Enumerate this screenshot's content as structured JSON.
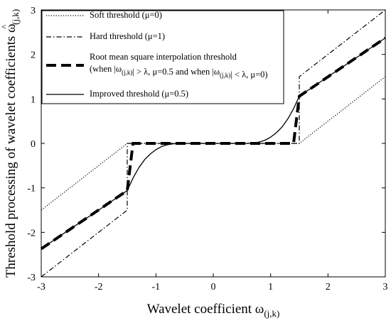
{
  "chart_data": {
    "type": "line",
    "xlabel": "Wavelet coefficient ω",
    "xlabel_sub": "(j,k)",
    "ylabel": "Threshold processing of wavelet coefficients ω",
    "ylabel_sub": "(j,k)",
    "ylabel_mark": "^",
    "xlim": [
      -3,
      3
    ],
    "ylim": [
      -3,
      3
    ],
    "x_ticks": [
      -3,
      -2,
      -1,
      0,
      1,
      2,
      3
    ],
    "y_ticks": [
      -3,
      -2,
      -1,
      0,
      1,
      2,
      3
    ],
    "x_tick_labels": [
      "-3",
      "-2",
      "-1",
      "0",
      "1",
      "2",
      "3"
    ],
    "y_tick_labels": [
      "-3",
      "-2",
      "-1",
      "0",
      "1",
      "2",
      "3"
    ],
    "grid": false,
    "legend_position": "top-left",
    "threshold": 1.5,
    "series": [
      {
        "id": "soft",
        "style": "dotted",
        "legend_lines": [
          "Soft threshold (μ=0)"
        ],
        "points": [
          [
            -3,
            -1.5
          ],
          [
            -1.5,
            0
          ],
          [
            1.5,
            0
          ],
          [
            3,
            1.5
          ]
        ]
      },
      {
        "id": "hard",
        "style": "dashdot",
        "legend_lines": [
          "Hard threshold (μ=1)"
        ],
        "points": [
          [
            -3,
            -3
          ],
          [
            -1.5,
            -1.5
          ],
          [
            -1.5,
            0
          ],
          [
            1.5,
            0
          ],
          [
            1.5,
            1.5
          ],
          [
            3,
            3
          ]
        ]
      },
      {
        "id": "rms",
        "style": "thick-dashed",
        "legend_lines": [
          "Root mean square interpolation threshold",
          "(when |ω(j,k)| > λ, μ=0.5 and when |ω(j,k)| < λ, μ=0)"
        ],
        "points": [
          [
            -3,
            -2.37
          ],
          [
            -1.5,
            -1.06
          ],
          [
            -1.4,
            0
          ],
          [
            1.4,
            0
          ],
          [
            1.5,
            1.06
          ],
          [
            3,
            2.37
          ]
        ]
      },
      {
        "id": "improved",
        "style": "solid",
        "legend_lines": [
          "Improved threshold (μ=0.5)"
        ],
        "points": [
          [
            -3,
            -2.37
          ],
          [
            -2.5,
            -1.93
          ],
          [
            -2,
            -1.5
          ],
          [
            -1.5,
            -1.06
          ],
          [
            -1.4,
            -0.78
          ],
          [
            -1.3,
            -0.55
          ],
          [
            -1.2,
            -0.37
          ],
          [
            -1.1,
            -0.24
          ],
          [
            -1.0,
            -0.14
          ],
          [
            -0.9,
            -0.07
          ],
          [
            -0.8,
            -0.03
          ],
          [
            -0.7,
            -0.01
          ],
          [
            -0.6,
            0
          ],
          [
            0.6,
            0
          ],
          [
            0.7,
            0.01
          ],
          [
            0.8,
            0.03
          ],
          [
            0.9,
            0.07
          ],
          [
            1.0,
            0.14
          ],
          [
            1.1,
            0.24
          ],
          [
            1.2,
            0.37
          ],
          [
            1.3,
            0.55
          ],
          [
            1.4,
            0.78
          ],
          [
            1.5,
            1.06
          ],
          [
            2,
            1.5
          ],
          [
            2.5,
            1.93
          ],
          [
            3,
            2.37
          ]
        ]
      }
    ]
  }
}
